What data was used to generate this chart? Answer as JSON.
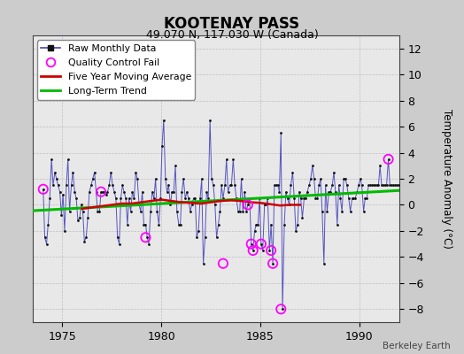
{
  "title": "KOOTENAY PASS",
  "subtitle": "49.070 N, 117.030 W (Canada)",
  "ylabel": "Temperature Anomaly (°C)",
  "credit": "Berkeley Earth",
  "ylim": [
    -9,
    13
  ],
  "yticks": [
    -8,
    -6,
    -4,
    -2,
    0,
    2,
    4,
    6,
    8,
    10,
    12
  ],
  "xlim": [
    1973.5,
    1992.0
  ],
  "xticks": [
    1975,
    1980,
    1985,
    1990
  ],
  "bg_color": "#e8e8e8",
  "plot_bg_color": "#e0e0e0",
  "raw_color": "#4444bb",
  "raw_marker_color": "#111111",
  "ma_color": "#cc0000",
  "trend_color": "#00bb00",
  "qc_color": "#ff00ff",
  "raw_x": [
    1974.04,
    1974.12,
    1974.21,
    1974.29,
    1974.37,
    1974.46,
    1974.54,
    1974.63,
    1974.71,
    1974.79,
    1974.88,
    1974.96,
    1975.04,
    1975.12,
    1975.21,
    1975.29,
    1975.37,
    1975.46,
    1975.54,
    1975.63,
    1975.71,
    1975.79,
    1975.88,
    1975.96,
    1976.04,
    1976.12,
    1976.21,
    1976.29,
    1976.37,
    1976.46,
    1976.54,
    1976.63,
    1976.71,
    1976.79,
    1976.88,
    1976.96,
    1977.04,
    1977.12,
    1977.21,
    1977.29,
    1977.37,
    1977.46,
    1977.54,
    1977.63,
    1977.71,
    1977.79,
    1977.88,
    1977.96,
    1978.04,
    1978.12,
    1978.21,
    1978.29,
    1978.37,
    1978.46,
    1978.54,
    1978.63,
    1978.71,
    1978.79,
    1978.88,
    1978.96,
    1979.04,
    1979.12,
    1979.21,
    1979.29,
    1979.37,
    1979.46,
    1979.54,
    1979.63,
    1979.71,
    1979.79,
    1979.88,
    1979.96,
    1980.04,
    1980.12,
    1980.21,
    1980.29,
    1980.37,
    1980.46,
    1980.54,
    1980.63,
    1980.71,
    1980.79,
    1980.88,
    1980.96,
    1981.04,
    1981.12,
    1981.21,
    1981.29,
    1981.37,
    1981.46,
    1981.54,
    1981.63,
    1981.71,
    1981.79,
    1981.88,
    1981.96,
    1982.04,
    1982.12,
    1982.21,
    1982.29,
    1982.37,
    1982.46,
    1982.54,
    1982.63,
    1982.71,
    1982.79,
    1982.88,
    1982.96,
    1983.04,
    1983.12,
    1983.21,
    1983.29,
    1983.37,
    1983.46,
    1983.54,
    1983.63,
    1983.71,
    1983.79,
    1983.88,
    1983.96,
    1984.04,
    1984.12,
    1984.21,
    1984.29,
    1984.37,
    1984.46,
    1984.54,
    1984.63,
    1984.71,
    1984.79,
    1984.88,
    1984.96,
    1985.04,
    1985.12,
    1985.21,
    1985.29,
    1985.37,
    1985.46,
    1985.54,
    1985.63,
    1985.71,
    1985.79,
    1985.88,
    1985.96,
    1986.04,
    1986.12,
    1986.21,
    1986.29,
    1986.37,
    1986.46,
    1986.54,
    1986.63,
    1986.71,
    1986.79,
    1986.88,
    1986.96,
    1987.04,
    1987.12,
    1987.21,
    1987.29,
    1987.37,
    1987.46,
    1987.54,
    1987.63,
    1987.71,
    1987.79,
    1987.88,
    1987.96,
    1988.04,
    1988.12,
    1988.21,
    1988.29,
    1988.37,
    1988.46,
    1988.54,
    1988.63,
    1988.71,
    1988.79,
    1988.88,
    1988.96,
    1989.04,
    1989.12,
    1989.21,
    1989.29,
    1989.37,
    1989.46,
    1989.54,
    1989.63,
    1989.71,
    1989.79,
    1989.88,
    1989.96,
    1990.04,
    1990.12,
    1990.21,
    1990.29,
    1990.37,
    1990.46,
    1990.54,
    1990.63,
    1990.71,
    1990.79,
    1990.88,
    1990.96,
    1991.04,
    1991.12,
    1991.21,
    1991.29,
    1991.37,
    1991.46,
    1991.54,
    1991.63,
    1991.71,
    1991.79,
    1991.88,
    1991.96
  ],
  "raw_y": [
    1.2,
    -2.5,
    -3.0,
    -1.5,
    0.5,
    3.5,
    1.5,
    2.5,
    2.0,
    1.5,
    1.0,
    -0.8,
    0.8,
    -2.0,
    1.5,
    3.5,
    -0.5,
    1.5,
    2.5,
    1.0,
    0.5,
    -1.2,
    -1.0,
    0.0,
    -0.5,
    -2.8,
    -2.5,
    -1.0,
    1.0,
    1.5,
    2.0,
    2.5,
    1.0,
    -0.5,
    -0.5,
    1.0,
    1.0,
    1.0,
    0.8,
    1.0,
    1.5,
    2.5,
    1.5,
    1.0,
    0.5,
    -2.5,
    -3.0,
    0.5,
    1.5,
    1.0,
    0.5,
    -1.5,
    0.5,
    -0.5,
    1.0,
    0.5,
    2.5,
    2.0,
    0.0,
    -0.5,
    1.0,
    -1.5,
    -1.5,
    -2.5,
    -3.0,
    -0.5,
    1.0,
    0.5,
    2.0,
    -0.5,
    -1.5,
    0.5,
    4.5,
    6.5,
    2.0,
    1.0,
    1.5,
    0.0,
    1.0,
    1.0,
    3.0,
    -0.5,
    -1.5,
    -1.5,
    1.0,
    2.0,
    0.5,
    1.0,
    0.5,
    -0.5,
    0.0,
    0.5,
    0.5,
    -2.5,
    -2.0,
    0.5,
    2.0,
    -4.5,
    -2.5,
    1.0,
    0.5,
    6.5,
    2.0,
    1.5,
    0.0,
    -2.5,
    -1.5,
    -0.5,
    1.5,
    0.5,
    1.5,
    3.5,
    1.0,
    1.5,
    1.5,
    3.5,
    1.5,
    0.5,
    -0.5,
    -0.5,
    2.0,
    -0.5,
    1.0,
    -0.5,
    0.0,
    0.5,
    -3.0,
    -3.5,
    -2.0,
    -1.5,
    -1.5,
    0.5,
    -3.0,
    -3.5,
    0.0,
    0.0,
    0.5,
    -3.5,
    -1.5,
    -4.5,
    1.5,
    1.5,
    1.5,
    1.0,
    5.5,
    -8.0,
    -1.5,
    1.0,
    0.5,
    0.0,
    1.5,
    2.5,
    0.5,
    -2.0,
    -1.5,
    1.0,
    0.5,
    -1.0,
    0.5,
    0.5,
    1.0,
    1.5,
    2.0,
    3.0,
    2.0,
    0.5,
    0.5,
    1.5,
    2.0,
    -0.5,
    -4.5,
    1.5,
    -0.5,
    1.0,
    1.0,
    1.5,
    2.5,
    1.0,
    -1.5,
    1.5,
    0.5,
    -0.5,
    2.0,
    2.0,
    1.5,
    0.5,
    -0.5,
    0.5,
    0.5,
    0.5,
    1.0,
    1.5,
    2.0,
    1.5,
    -0.5,
    0.5,
    0.5,
    1.5,
    1.5,
    1.5,
    1.5,
    1.5,
    1.5,
    1.5,
    3.0,
    1.5,
    1.5,
    1.5,
    1.5,
    3.5,
    1.5,
    1.5,
    1.5,
    1.5,
    1.5,
    1.5
  ],
  "qc_x": [
    1974.04,
    1976.96,
    1979.21,
    1983.12,
    1984.37,
    1984.54,
    1984.63,
    1985.04,
    1985.54,
    1985.63,
    1986.04,
    1991.46
  ],
  "qc_y": [
    1.2,
    1.0,
    -2.5,
    -4.5,
    0.0,
    -3.0,
    -3.5,
    -3.0,
    -3.5,
    -4.5,
    -8.0,
    3.5
  ],
  "ma_x": [
    1976.0,
    1977.0,
    1977.5,
    1978.0,
    1978.5,
    1979.0,
    1979.5,
    1980.0,
    1980.5,
    1981.0,
    1981.5,
    1982.0,
    1982.5,
    1983.0,
    1983.5,
    1984.0,
    1984.5,
    1985.0,
    1985.5,
    1986.0,
    1986.5,
    1987.0
  ],
  "ma_y": [
    -0.3,
    -0.1,
    0.0,
    0.1,
    0.1,
    0.2,
    0.3,
    0.4,
    0.3,
    0.2,
    0.15,
    0.1,
    0.2,
    0.3,
    0.35,
    0.3,
    0.2,
    0.15,
    0.05,
    -0.05,
    0.0,
    0.0
  ],
  "trend_x": [
    1973.5,
    1992.0
  ],
  "trend_y": [
    -0.45,
    1.1
  ]
}
